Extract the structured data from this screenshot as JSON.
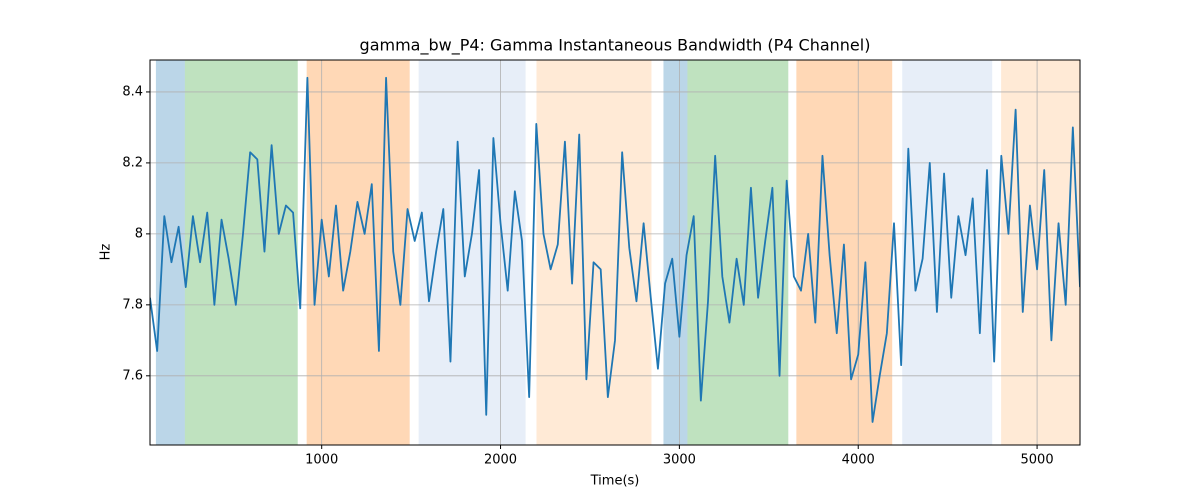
{
  "chart_data": {
    "type": "line",
    "title": "gamma_bw_P4: Gamma Instantaneous Bandwidth (P4 Channel)",
    "xlabel": "Time(s)",
    "ylabel": "Hz",
    "x": [
      40,
      80,
      120,
      160,
      200,
      240,
      280,
      320,
      360,
      400,
      440,
      480,
      520,
      560,
      600,
      640,
      680,
      720,
      760,
      800,
      840,
      880,
      920,
      960,
      1000,
      1040,
      1080,
      1120,
      1160,
      1200,
      1240,
      1280,
      1320,
      1360,
      1400,
      1440,
      1480,
      1520,
      1560,
      1600,
      1640,
      1680,
      1720,
      1760,
      1800,
      1840,
      1880,
      1920,
      1960,
      2000,
      2040,
      2080,
      2120,
      2160,
      2200,
      2240,
      2280,
      2320,
      2360,
      2400,
      2440,
      2480,
      2520,
      2560,
      2600,
      2640,
      2680,
      2720,
      2760,
      2800,
      2840,
      2880,
      2920,
      2960,
      3000,
      3040,
      3080,
      3120,
      3160,
      3200,
      3240,
      3280,
      3320,
      3360,
      3400,
      3440,
      3480,
      3520,
      3560,
      3600,
      3640,
      3680,
      3720,
      3760,
      3800,
      3840,
      3880,
      3920,
      3960,
      4000,
      4040,
      4080,
      4120,
      4160,
      4200,
      4240,
      4280,
      4320,
      4360,
      4400,
      4440,
      4480,
      4520,
      4560,
      4600,
      4640,
      4680,
      4720,
      4760,
      4800,
      4840,
      4880,
      4920,
      4960,
      5000,
      5040,
      5080,
      5120,
      5160,
      5200,
      5240
    ],
    "series": [
      {
        "color": "#1f77b4",
        "values": [
          7.82,
          7.67,
          8.05,
          7.92,
          8.02,
          7.85,
          8.05,
          7.92,
          8.06,
          7.8,
          8.04,
          7.93,
          7.8,
          8.0,
          8.23,
          8.21,
          7.95,
          8.25,
          8.0,
          8.08,
          8.06,
          7.79,
          8.44,
          7.8,
          8.04,
          7.88,
          8.08,
          7.84,
          7.95,
          8.09,
          8.0,
          8.14,
          7.67,
          8.44,
          7.95,
          7.8,
          8.07,
          7.98,
          8.06,
          7.81,
          7.95,
          8.07,
          7.64,
          8.26,
          7.88,
          8.0,
          8.18,
          7.49,
          8.27,
          8.03,
          7.84,
          8.12,
          7.98,
          7.54,
          8.31,
          8.0,
          7.9,
          7.97,
          8.26,
          7.86,
          8.28,
          7.59,
          7.92,
          7.9,
          7.54,
          7.7,
          8.23,
          7.96,
          7.81,
          8.03,
          7.82,
          7.62,
          7.86,
          7.93,
          7.71,
          7.94,
          8.05,
          7.53,
          7.81,
          8.22,
          7.88,
          7.75,
          7.93,
          7.8,
          8.13,
          7.82,
          7.98,
          8.13,
          7.6,
          8.15,
          7.88,
          7.84,
          8.0,
          7.75,
          8.22,
          7.94,
          7.72,
          7.97,
          7.59,
          7.66,
          7.92,
          7.47,
          7.6,
          7.72,
          8.03,
          7.63,
          8.24,
          7.84,
          7.93,
          8.2,
          7.78,
          8.17,
          7.82,
          8.05,
          7.94,
          8.1,
          7.72,
          8.18,
          7.64,
          8.22,
          8.0,
          8.35,
          7.78,
          8.08,
          7.9,
          8.18,
          7.7,
          8.03,
          7.8,
          8.3,
          7.85
        ]
      }
    ],
    "spans": [
      {
        "start": 73,
        "end": 235,
        "color": "#1f77b4"
      },
      {
        "start": 235,
        "end": 866,
        "color": "#2ca02c"
      },
      {
        "start": 916,
        "end": 1492,
        "color": "#ff7f0e"
      },
      {
        "start": 1542,
        "end": 2140,
        "color": "#aec7e8"
      },
      {
        "start": 2201,
        "end": 2844,
        "color": "#ffbb78"
      },
      {
        "start": 2911,
        "end": 3045,
        "color": "#1f77b4"
      },
      {
        "start": 3045,
        "end": 3609,
        "color": "#2ca02c"
      },
      {
        "start": 3654,
        "end": 4190,
        "color": "#ff7f0e"
      },
      {
        "start": 4246,
        "end": 4749,
        "color": "#aec7e8"
      },
      {
        "start": 4799,
        "end": 5240,
        "color": "#ffbb78"
      }
    ],
    "xlim": [
      40,
      5240
    ],
    "ylim": [
      7.405,
      8.49
    ],
    "xticks": [
      1000,
      2000,
      3000,
      4000,
      5000
    ],
    "yticks": [
      7.6,
      7.8,
      8.0,
      8.2,
      8.4
    ],
    "grid": true
  }
}
